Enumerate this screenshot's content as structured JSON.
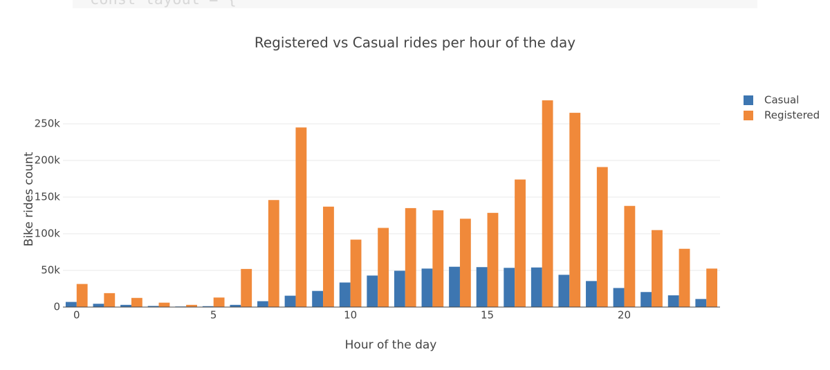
{
  "code_snippet": "const layout = {",
  "chart_data": {
    "type": "grouped-bar",
    "title": "Registered vs Casual rides per hour of the day",
    "xlabel": "Hour of the day",
    "ylabel": "Bike rides count",
    "x": [
      0,
      1,
      2,
      3,
      4,
      5,
      6,
      7,
      8,
      9,
      10,
      11,
      12,
      13,
      14,
      15,
      16,
      17,
      18,
      19,
      20,
      21,
      22,
      23
    ],
    "series": [
      {
        "name": "Casual",
        "color": "#3d76b1",
        "values": [
          7000,
          4500,
          3000,
          1500,
          800,
          1200,
          3000,
          8000,
          15500,
          22000,
          33500,
          43000,
          49500,
          52500,
          55000,
          54500,
          53500,
          54000,
          44000,
          35500,
          26000,
          20500,
          16000,
          11000
        ]
      },
      {
        "name": "Registered",
        "color": "#f0893a",
        "values": [
          31500,
          19000,
          12500,
          6000,
          3000,
          13000,
          52000,
          146000,
          245000,
          137000,
          92000,
          108000,
          135000,
          132000,
          120500,
          128500,
          174000,
          282000,
          265000,
          191000,
          138000,
          105000,
          79500,
          52500
        ]
      }
    ],
    "xlim": [
      -0.5,
      23.5
    ],
    "xticks": [
      0,
      5,
      10,
      15,
      20
    ],
    "ylim": [
      0,
      300000
    ],
    "yticks": [
      0,
      {
        "value": 50000,
        "label": "50k"
      },
      {
        "value": 100000,
        "label": "100k"
      },
      {
        "value": 150000,
        "label": "150k"
      },
      {
        "value": 200000,
        "label": "200k"
      },
      {
        "value": 250000,
        "label": "250k"
      }
    ],
    "grid": true,
    "legend": "top-right"
  }
}
